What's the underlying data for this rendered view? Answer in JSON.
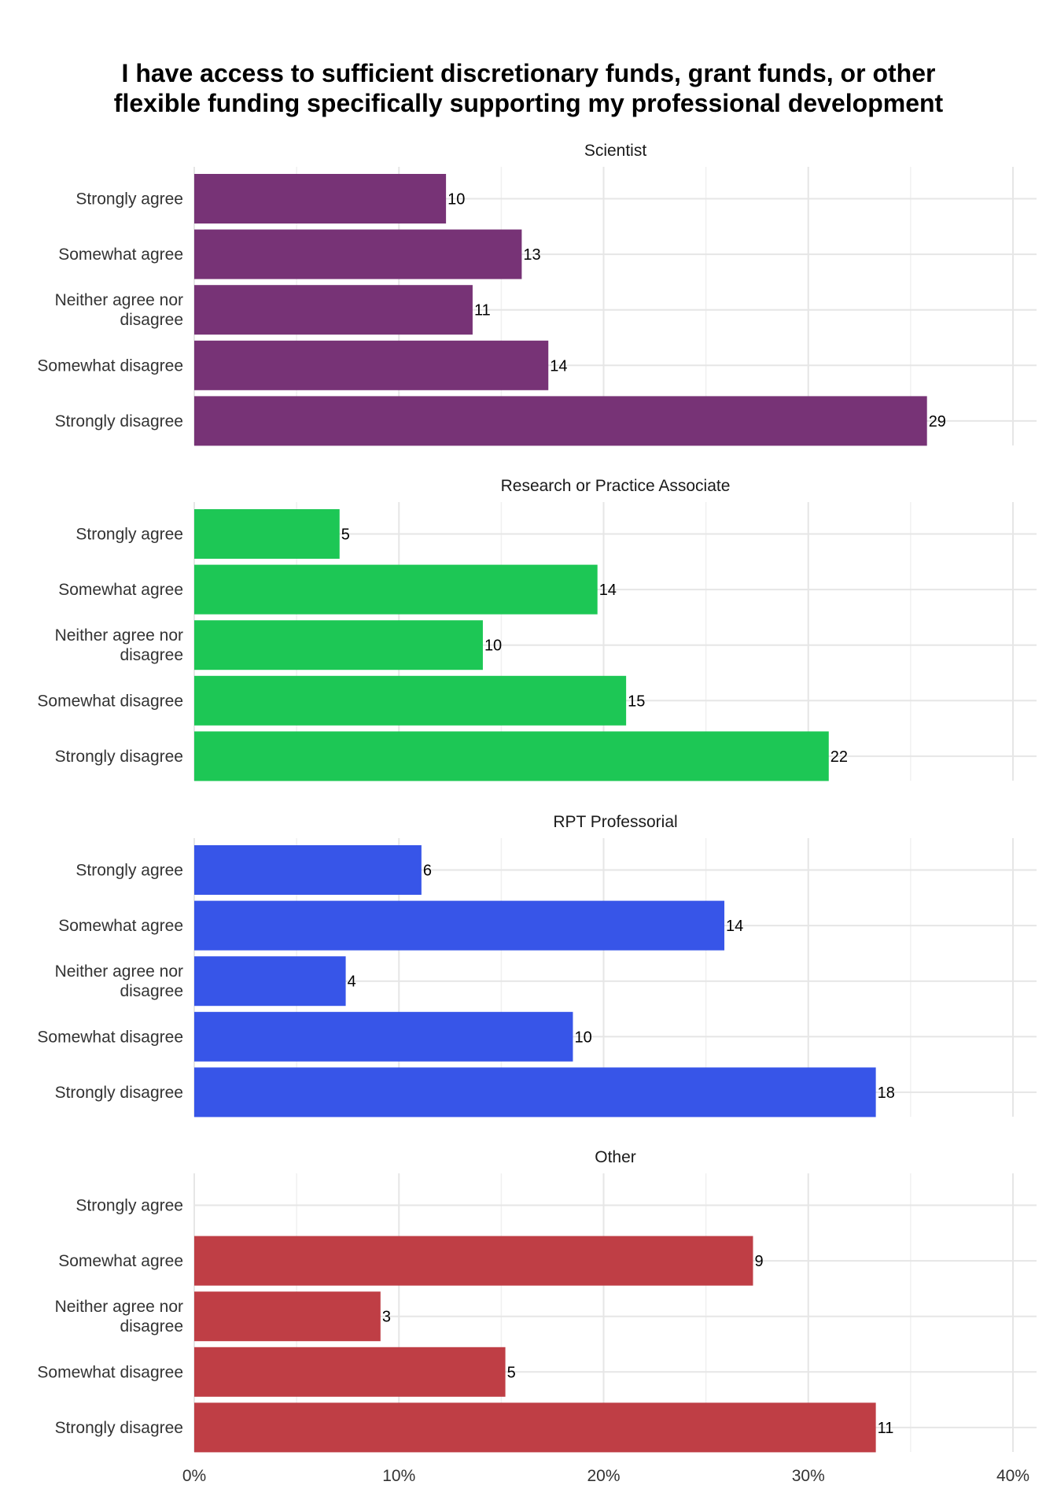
{
  "chart_data": {
    "type": "bar",
    "orientation": "horizontal",
    "title": "I have access to sufficient discretionary funds, grant funds, or other flexible funding specifically supporting my professional development",
    "title_lines": [
      "I have access to sufficient discretionary funds, grant funds, or other",
      "flexible funding specifically supporting my professional development"
    ],
    "xlabel": "",
    "ylabel": "",
    "xlim": [
      0,
      0.4
    ],
    "x_ticks": [
      0,
      0.1,
      0.2,
      0.3,
      0.4
    ],
    "x_tick_labels": [
      "0%",
      "10%",
      "20%",
      "30%",
      "40%"
    ],
    "grid": true,
    "legend": "none",
    "categories": [
      [
        "Strongly agree"
      ],
      [
        "Somewhat agree"
      ],
      [
        "Neither agree nor",
        "disagree"
      ],
      [
        "Somewhat disagree"
      ],
      [
        "Strongly disagree"
      ]
    ],
    "facets": [
      {
        "label": "Scientist",
        "color": "#773376",
        "counts": [
          10,
          13,
          11,
          14,
          29
        ],
        "percents": [
          0.123,
          0.16,
          0.136,
          0.173,
          0.358
        ]
      },
      {
        "label": "Research or Practice Associate",
        "color": "#1DC755",
        "counts": [
          5,
          14,
          10,
          15,
          22
        ],
        "percents": [
          0.071,
          0.197,
          0.141,
          0.211,
          0.31
        ]
      },
      {
        "label": "RPT Professorial",
        "color": "#3755E8",
        "counts": [
          6,
          14,
          4,
          10,
          18
        ],
        "percents": [
          0.111,
          0.259,
          0.074,
          0.185,
          0.333
        ]
      },
      {
        "label": "Other",
        "color": "#BF3E45",
        "counts": [
          null,
          9,
          3,
          5,
          11
        ],
        "percents": [
          0,
          0.273,
          0.091,
          0.152,
          0.333
        ]
      }
    ]
  }
}
